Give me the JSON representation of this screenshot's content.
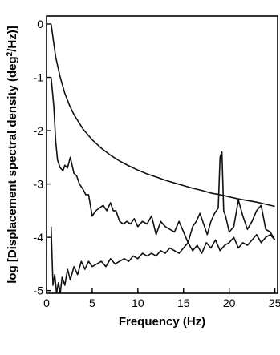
{
  "chart_data": {
    "type": "line",
    "title": "",
    "xlabel": "Frequency (Hz)",
    "ylabel_text": "log [Displacement spectral density (deg",
    "ylabel_sup": "2",
    "ylabel_end": "/Hz)]",
    "xlim": [
      0,
      25.3
    ],
    "ylim": [
      -5.05,
      0.15
    ],
    "xticks": [
      0,
      5,
      10,
      15,
      20,
      25
    ],
    "yticks": [
      -5,
      -4,
      -3,
      -2,
      -1,
      0
    ],
    "xtick_labels": [
      "0",
      "5",
      "10",
      "15",
      "20",
      "25"
    ],
    "ytick_labels": [
      "-5",
      "-4",
      "-3",
      "-2",
      "-1",
      "0"
    ],
    "grid": false,
    "legend": "none",
    "line_color": "#111111",
    "series": [
      {
        "x": [
          0.5,
          1,
          1.5,
          2,
          2.5,
          3,
          4,
          5,
          6,
          7,
          8,
          9,
          10,
          11,
          12,
          13,
          14,
          15,
          16,
          17,
          18,
          19,
          20,
          21,
          22,
          23,
          24,
          25
        ],
        "values": [
          0,
          -0.62,
          -1.0,
          -1.3,
          -1.52,
          -1.7,
          -1.97,
          -2.17,
          -2.33,
          -2.46,
          -2.57,
          -2.66,
          -2.74,
          -2.81,
          -2.87,
          -2.93,
          -2.98,
          -3.03,
          -3.08,
          -3.12,
          -3.17,
          -3.2,
          -3.24,
          -3.28,
          -3.31,
          -3.34,
          -3.38,
          -3.42
        ]
      },
      {
        "x": [
          0.5,
          0.8,
          1.0,
          1.2,
          1.5,
          1.8,
          2.0,
          2.3,
          2.6,
          3.0,
          3.3,
          3.6,
          4.0,
          4.3,
          4.6,
          5.0,
          5.4,
          5.8,
          6.2,
          6.6,
          7.0,
          7.3,
          7.6,
          8.0,
          8.4,
          8.8,
          9.2,
          9.6,
          10.0,
          10.5,
          11.0,
          11.5,
          12.0,
          12.5,
          13.0,
          13.5,
          14.0,
          14.5,
          15.0,
          15.5,
          16.0,
          16.4,
          16.8,
          17.2,
          17.6,
          18.0,
          18.4,
          18.8,
          19.0,
          19.2,
          19.4,
          19.6,
          20.0,
          20.5,
          21.0,
          21.5,
          22.0,
          22.5,
          23.0,
          23.5,
          24.0,
          24.5,
          25.0
        ],
        "values": [
          -1.0,
          -1.55,
          -2.2,
          -2.55,
          -2.7,
          -2.75,
          -2.65,
          -2.7,
          -2.5,
          -2.8,
          -2.85,
          -3.0,
          -3.1,
          -3.2,
          -3.2,
          -3.6,
          -3.5,
          -3.45,
          -3.4,
          -3.5,
          -3.35,
          -3.5,
          -3.5,
          -3.7,
          -3.75,
          -3.7,
          -3.75,
          -3.65,
          -3.8,
          -3.7,
          -3.75,
          -3.6,
          -3.95,
          -3.7,
          -3.8,
          -3.85,
          -3.9,
          -3.7,
          -3.9,
          -4.1,
          -3.8,
          -3.7,
          -3.55,
          -3.75,
          -3.95,
          -3.7,
          -3.55,
          -3.45,
          -2.5,
          -2.4,
          -3.5,
          -3.6,
          -3.9,
          -3.8,
          -3.3,
          -3.6,
          -3.85,
          -3.7,
          -3.5,
          -3.4,
          -3.85,
          -3.9,
          -4.05
        ]
      },
      {
        "x": [
          0.5,
          0.7,
          0.9,
          1.1,
          1.3,
          1.5,
          1.7,
          2.0,
          2.3,
          2.6,
          3.0,
          3.4,
          3.8,
          4.2,
          4.6,
          5.0,
          5.5,
          6.0,
          6.5,
          7.0,
          7.5,
          8.0,
          8.5,
          9.0,
          9.5,
          10.0,
          10.5,
          11.0,
          11.5,
          12.0,
          12.5,
          13.0,
          13.5,
          14.0,
          14.5,
          15.0,
          15.5,
          16.0,
          16.5,
          17.0,
          17.5,
          18.0,
          18.5,
          19.0,
          19.5,
          20.0,
          20.5,
          21.0,
          21.5,
          22.0,
          22.5,
          23.0,
          23.5,
          24.0,
          24.5,
          25.0
        ],
        "values": [
          -3.8,
          -4.9,
          -4.7,
          -5.05,
          -4.85,
          -5.05,
          -4.75,
          -4.9,
          -4.6,
          -4.8,
          -4.55,
          -4.7,
          -4.45,
          -4.6,
          -4.45,
          -4.55,
          -4.5,
          -4.45,
          -4.55,
          -4.4,
          -4.5,
          -4.45,
          -4.4,
          -4.45,
          -4.35,
          -4.4,
          -4.3,
          -4.35,
          -4.3,
          -4.35,
          -4.25,
          -4.3,
          -4.2,
          -4.25,
          -4.3,
          -4.2,
          -4.1,
          -4.25,
          -4.15,
          -4.3,
          -4.1,
          -4.2,
          -4.05,
          -4.25,
          -4.15,
          -4.1,
          -4.0,
          -4.2,
          -4.1,
          -4.15,
          -4.05,
          -3.95,
          -4.1,
          -4.0,
          -3.95,
          -4.05
        ]
      }
    ]
  }
}
